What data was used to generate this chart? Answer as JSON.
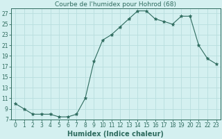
{
  "x": [
    0,
    1,
    2,
    3,
    4,
    5,
    6,
    7,
    8,
    9,
    10,
    11,
    12,
    13,
    14,
    15,
    16,
    17,
    18,
    19,
    20,
    21,
    22,
    23
  ],
  "y": [
    10,
    9,
    8,
    8,
    8,
    7.5,
    7.5,
    8,
    11,
    18,
    22,
    23,
    24.5,
    26,
    27.5,
    27.5,
    26,
    25.5,
    25,
    26.5,
    26.5,
    21,
    18.5,
    17.5
  ],
  "title": "Courbe de l'humidex pour Hohrod (68)",
  "xlabel": "Humidex (Indice chaleur)",
  "ylabel": "",
  "line_color": "#2e6b5e",
  "marker_color": "#2e6b5e",
  "bg_color": "#d4f0f0",
  "grid_color": "#b8dede",
  "xlim": [
    -0.5,
    23.5
  ],
  "ylim": [
    7,
    28
  ],
  "yticks": [
    7,
    9,
    11,
    13,
    15,
    17,
    19,
    21,
    23,
    25,
    27
  ],
  "xticks": [
    0,
    1,
    2,
    3,
    4,
    5,
    6,
    7,
    8,
    9,
    10,
    11,
    12,
    13,
    14,
    15,
    16,
    17,
    18,
    19,
    20,
    21,
    22,
    23
  ],
  "xtick_labels": [
    "0",
    "1",
    "2",
    "3",
    "4",
    "5",
    "6",
    "7",
    "8",
    "9",
    "10",
    "11",
    "12",
    "13",
    "14",
    "15",
    "16",
    "17",
    "18",
    "19",
    "20",
    "21",
    "22",
    "23"
  ],
  "title_fontsize": 6.5,
  "xlabel_fontsize": 7,
  "tick_fontsize": 5.5
}
